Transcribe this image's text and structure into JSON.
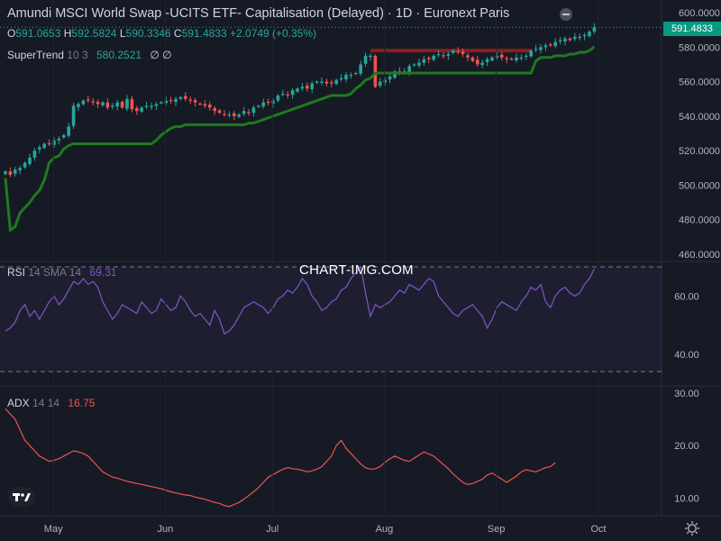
{
  "header": {
    "title": "Amundi MSCI World Swap -UCITS ETF- Capitalisation (Delayed) · 1D · Euronext Paris",
    "ohlc": {
      "o_label": "O",
      "o": "591.0653",
      "h_label": "H",
      "h": "592.5824",
      "l_label": "L",
      "l": "590.3346",
      "c_label": "C",
      "c": "591.4833",
      "change": "+2.0749 (+0.35%)"
    },
    "last_price": "591.4833"
  },
  "indicators": {
    "supertrend": {
      "name": "SuperTrend",
      "params": "10 3",
      "value": "580.2521",
      "nulls": "∅  ∅"
    },
    "rsi": {
      "name": "RSI",
      "params": "14 SMA 14",
      "value": "69.31"
    },
    "adx": {
      "name": "ADX",
      "params": "14 14",
      "value": "16.75"
    }
  },
  "watermark": "CHART-IMG.COM",
  "colors": {
    "background": "#161a25",
    "up": "#26a69a",
    "down": "#ef5350",
    "supertrend": "#1e7a1e",
    "rsi": "#7e57c2",
    "adx": "#ef5350",
    "text": "#d1d4dc"
  },
  "chart_data": [
    {
      "type": "candlestick",
      "ylim": [
        460,
        600
      ],
      "y_ticks": [
        "600.0000",
        "580.0000",
        "560.0000",
        "540.0000",
        "520.0000",
        "500.0000",
        "480.0000",
        "460.0000"
      ],
      "y_tick_values": [
        600,
        580,
        560,
        540,
        520,
        500,
        480,
        460
      ],
      "x_ticks": [
        "May",
        "Jun",
        "Jul",
        "Aug",
        "Sep",
        "Oct"
      ],
      "x_tick_index": [
        8,
        31,
        53,
        76,
        99,
        120
      ],
      "close": [
        508,
        506,
        509,
        510,
        513,
        516,
        520,
        522,
        524,
        524,
        526,
        527,
        529,
        534,
        546,
        547,
        549,
        549,
        548,
        547,
        548,
        545,
        546,
        548,
        545,
        550,
        544,
        543,
        545,
        546,
        546,
        547,
        548,
        549,
        549,
        550,
        551,
        550,
        549,
        548,
        547,
        546,
        545,
        543,
        542,
        541,
        541,
        540,
        541,
        543,
        542,
        545,
        546,
        548,
        548,
        549,
        552,
        553,
        552,
        555,
        556,
        557,
        556,
        559,
        560,
        560,
        559,
        559,
        561,
        562,
        564,
        564,
        565,
        570,
        575,
        575,
        557,
        560,
        561,
        563,
        566,
        565,
        566,
        569,
        570,
        571,
        573,
        573,
        575,
        576,
        575,
        576,
        578,
        577,
        576,
        574,
        572,
        570,
        571,
        573,
        574,
        575,
        574,
        573,
        573,
        574,
        574,
        575,
        578,
        579,
        580,
        581,
        581,
        583,
        584,
        585,
        584,
        586,
        586,
        587,
        589,
        591.48
      ],
      "supertrend": [
        504,
        474,
        476,
        484,
        487,
        490,
        494,
        497,
        503,
        513,
        516,
        517,
        521,
        523,
        524,
        524,
        524,
        524,
        524,
        524,
        524,
        524,
        524,
        524,
        524,
        524,
        524,
        524,
        524,
        524,
        524,
        526,
        529,
        531,
        533,
        534,
        534,
        535,
        535,
        535,
        535,
        535,
        535,
        535,
        535,
        535,
        535,
        535,
        535,
        535,
        536,
        536,
        537,
        538,
        539,
        540,
        541,
        542,
        543,
        544,
        545,
        546,
        547,
        548,
        549,
        550,
        551,
        552,
        552,
        552,
        552,
        553,
        556,
        558,
        561,
        562,
        565,
        565,
        565,
        565,
        565,
        565,
        565,
        565,
        565,
        565,
        565,
        565,
        565,
        565,
        565,
        565,
        565,
        565,
        565,
        565,
        565,
        565,
        565,
        565,
        565,
        565,
        565,
        565,
        565,
        565,
        565,
        565,
        565,
        572,
        574,
        574,
        574,
        575,
        575,
        575,
        576,
        576,
        577,
        577,
        578,
        580.25
      ],
      "resistance_level": 578
    },
    {
      "type": "line",
      "name": "RSI",
      "ylim": [
        30,
        70
      ],
      "y_ticks": [
        "60.00",
        "40.00"
      ],
      "y_tick_values": [
        60,
        40
      ],
      "bands": [
        34,
        70
      ],
      "values": [
        48,
        49,
        51,
        55,
        57,
        53,
        55,
        52,
        55,
        58,
        60,
        57,
        59,
        62,
        65,
        64,
        66,
        64,
        65,
        63,
        58,
        55,
        52,
        54,
        57,
        56,
        55,
        54,
        58,
        56,
        54,
        55,
        59,
        57,
        55,
        56,
        60,
        58,
        55,
        53,
        54,
        52,
        50,
        55,
        52,
        47,
        48,
        50,
        53,
        56,
        57,
        58,
        57,
        56,
        54,
        56,
        59,
        60,
        62,
        61,
        63,
        66,
        64,
        60,
        58,
        55,
        56,
        58,
        59,
        62,
        63,
        66,
        68,
        70,
        61,
        53,
        57,
        56,
        57,
        58,
        60,
        62,
        61,
        64,
        63,
        62,
        64,
        66,
        65,
        60,
        58,
        56,
        54,
        53,
        55,
        56,
        57,
        55,
        53,
        49,
        52,
        56,
        58,
        57,
        56,
        55,
        58,
        60,
        63,
        62,
        64,
        58,
        56,
        60,
        62,
        63,
        61,
        60,
        61,
        64,
        66,
        69.31
      ],
      "watermark": "CHART-IMG.COM"
    },
    {
      "type": "line",
      "name": "ADX",
      "ylim": [
        7,
        31
      ],
      "y_ticks": [
        "30.00",
        "20.00",
        "10.00"
      ],
      "y_tick_values": [
        30,
        20,
        10
      ],
      "values": [
        27,
        26,
        25,
        23,
        21,
        20,
        19,
        18,
        17.5,
        17,
        17.2,
        17.5,
        18,
        18.5,
        19,
        18.8,
        18.5,
        18,
        17,
        16,
        15,
        14.5,
        14,
        13.8,
        13.5,
        13.2,
        13,
        12.8,
        12.6,
        12.4,
        12.2,
        12,
        11.8,
        11.5,
        11.2,
        11,
        10.8,
        10.6,
        10.5,
        10.2,
        10,
        9.8,
        9.5,
        9.2,
        9,
        8.6,
        8.4,
        8.8,
        9.2,
        9.8,
        10.5,
        11.2,
        12,
        13,
        14,
        14.5,
        15,
        15.5,
        15.8,
        15.6,
        15.5,
        15.3,
        15,
        15.2,
        15.5,
        16,
        17,
        18,
        20,
        21,
        19.5,
        18.5,
        17.5,
        16.5,
        15.8,
        15.5,
        15.6,
        16,
        16.8,
        17.5,
        18,
        17.6,
        17.2,
        17,
        17.6,
        18.2,
        18.8,
        18.4,
        18,
        17.2,
        16.4,
        15.6,
        14.6,
        13.8,
        13,
        12.6,
        12.8,
        13.2,
        13.6,
        14.4,
        14.8,
        14.2,
        13.6,
        13,
        13.6,
        14.2,
        15,
        15.4,
        15.2,
        15,
        15.4,
        15.8,
        16,
        16.75
      ],
      "plot_start_index": 9
    }
  ]
}
